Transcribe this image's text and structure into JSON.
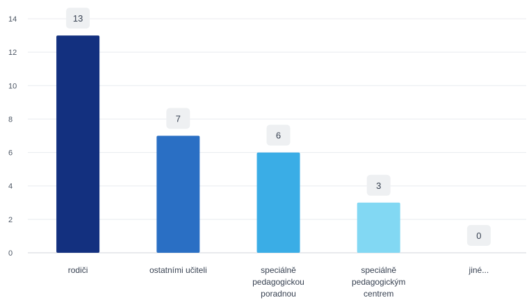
{
  "chart_data": {
    "type": "bar",
    "title": "",
    "xlabel": "",
    "ylabel": "",
    "ylim": [
      0,
      14
    ],
    "y_ticks": [
      0,
      2,
      4,
      6,
      8,
      10,
      12,
      14
    ],
    "grid": true,
    "categories": [
      [
        "rodiči"
      ],
      [
        "ostatními učiteli"
      ],
      [
        "speciálně",
        "pedagogickou",
        "poradnou"
      ],
      [
        "speciálně",
        "pedagogickým",
        "centrem"
      ],
      [
        "jiné..."
      ]
    ],
    "values": [
      13,
      7,
      6,
      3,
      0
    ],
    "colors": [
      "#13307f",
      "#2a6fc4",
      "#3aade6",
      "#82d8f3",
      "#b9e6f7"
    ],
    "data_labels": [
      "13",
      "7",
      "6",
      "3",
      "0"
    ]
  }
}
